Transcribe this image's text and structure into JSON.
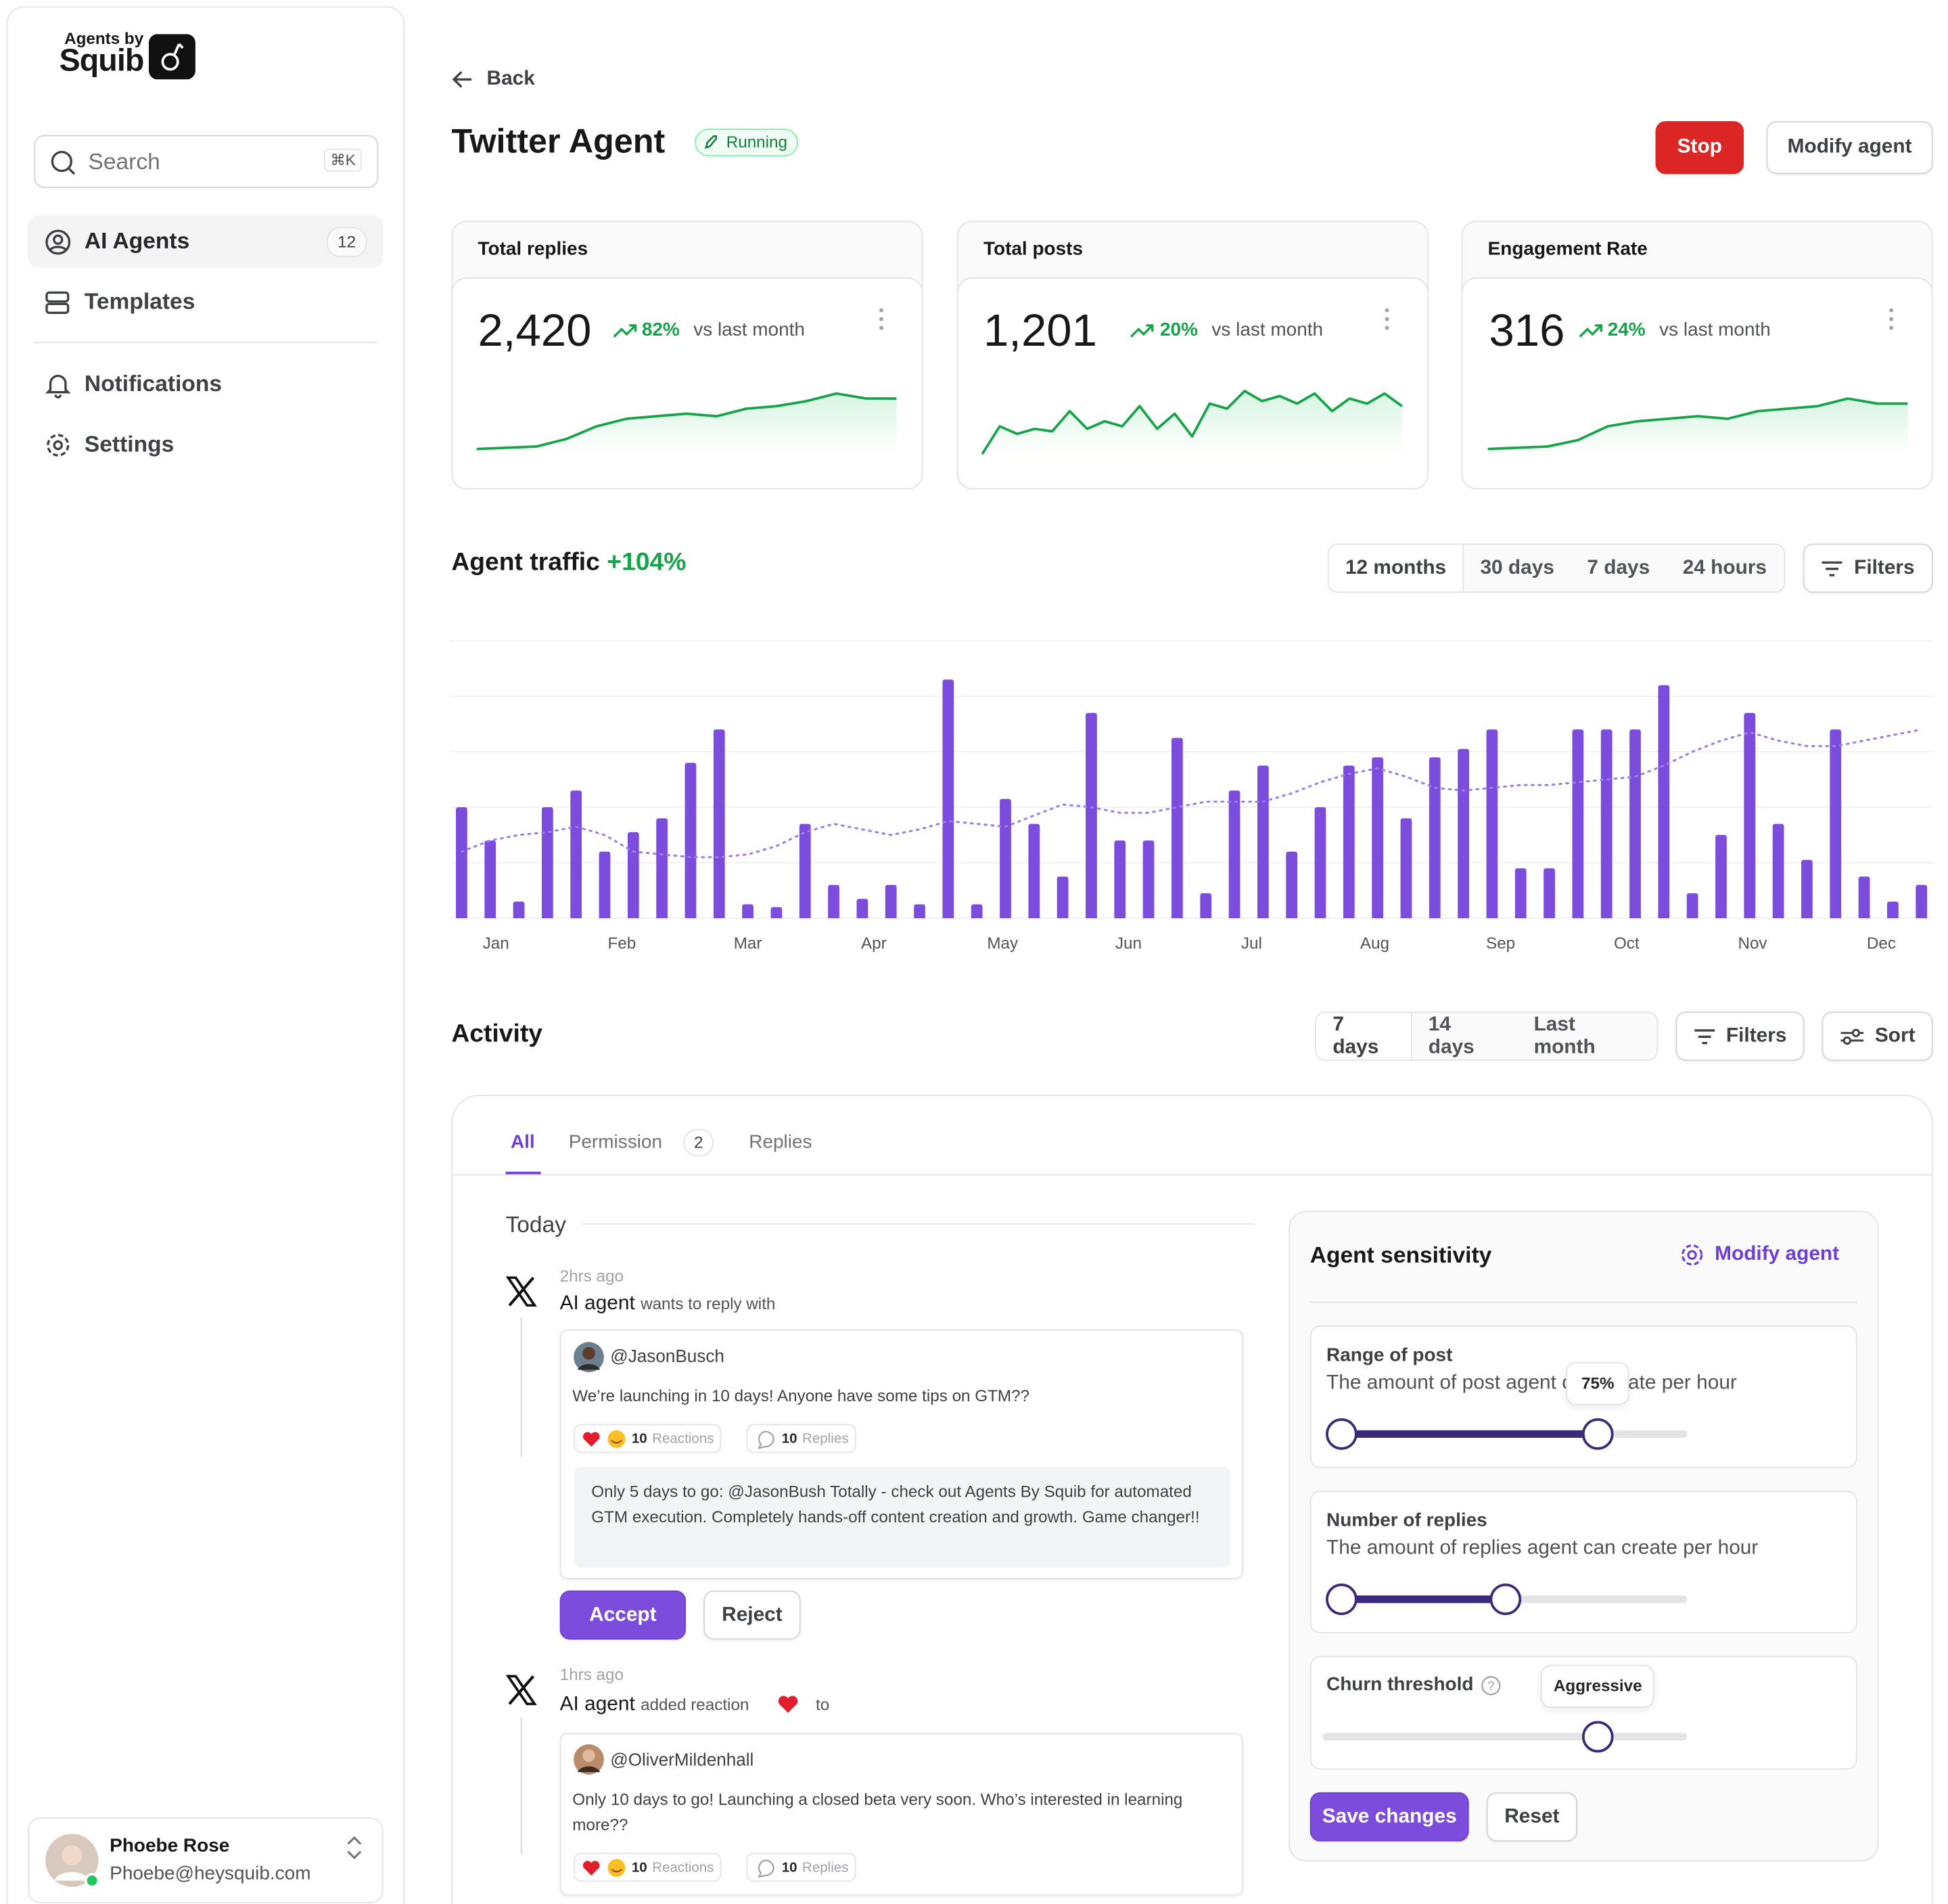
{
  "sidebar": {
    "brand_small": "Agents by",
    "brand": "Squib",
    "search": "Search",
    "shortcut": "⌘K",
    "nav": [
      {
        "label": "AI Agents",
        "count": 12
      },
      {
        "label": "Templates"
      },
      {
        "label": "Notifications"
      },
      {
        "label": "Settings"
      }
    ],
    "user": {
      "name": "Phoebe Rose",
      "email": "Phoebe@heysquib.com"
    }
  },
  "header": {
    "back": "Back",
    "title": "Twitter Agent",
    "status": "Running",
    "stop": "Stop",
    "modify": "Modify agent"
  },
  "sparkline_ylim": [
    0,
    60
  ],
  "cards": [
    {
      "title": "Total replies",
      "value": "2,420",
      "change": "82%",
      "compare": "vs last month",
      "sparkline": [
        4,
        5,
        6,
        12,
        22,
        28,
        30,
        32,
        30,
        36,
        38,
        42,
        48,
        44,
        44
      ]
    },
    {
      "title": "Total posts",
      "value": "1,201",
      "change": "20%",
      "compare": "vs last month",
      "sparkline": [
        0,
        22,
        16,
        20,
        18,
        34,
        20,
        26,
        22,
        38,
        20,
        32,
        14,
        40,
        36,
        50,
        42,
        46,
        40,
        48,
        34,
        44,
        40,
        48,
        38
      ]
    },
    {
      "title": "Engagement Rate",
      "value": "316",
      "change": "24%",
      "compare": "vs last month",
      "sparkline": [
        4,
        5,
        6,
        11,
        22,
        26,
        28,
        30,
        28,
        34,
        36,
        38,
        44,
        40,
        40
      ]
    }
  ],
  "chart_data": {
    "type": "bar",
    "title": "Agent traffic",
    "change": "+104%",
    "x": [
      0,
      1,
      2,
      3,
      4,
      5,
      6,
      7,
      8,
      9,
      10,
      11,
      12,
      13,
      14,
      15,
      16,
      17,
      18,
      19,
      20,
      21,
      22,
      23,
      24,
      25,
      26,
      27,
      28,
      29,
      30,
      31,
      32,
      33,
      34,
      35,
      36,
      37,
      38,
      39,
      40,
      41,
      42,
      43,
      44,
      45,
      46,
      47,
      48,
      49,
      50,
      51
    ],
    "series": [
      {
        "type": "bar",
        "color": "#7c4ddd",
        "values": [
          40,
          28,
          6,
          40,
          46,
          24,
          31,
          36,
          56,
          68,
          5,
          4,
          34,
          12,
          7,
          12,
          5,
          86,
          5,
          43,
          34,
          15,
          74,
          28,
          28,
          65,
          9,
          46,
          55,
          24,
          40,
          55,
          58,
          36,
          58,
          61,
          68,
          18,
          18,
          68,
          68,
          68,
          84,
          9,
          30,
          74,
          34,
          21,
          68,
          15,
          6,
          12
        ]
      },
      {
        "type": "line",
        "color": "#9d7de6",
        "values": [
          24,
          28,
          30,
          31,
          33,
          30,
          24,
          23,
          22,
          22,
          23,
          26,
          31,
          34,
          32,
          30,
          32,
          35,
          34,
          33,
          37,
          41,
          40,
          38,
          38,
          40,
          42,
          42,
          42,
          45,
          49,
          52,
          54,
          51,
          47,
          46,
          47,
          48,
          48,
          49,
          50,
          51,
          55,
          60,
          64,
          67,
          64,
          62,
          62,
          64,
          66,
          68
        ]
      }
    ],
    "xlim": [
      -0.4,
      51.4
    ],
    "xticks": [
      {
        "value": 1.2,
        "label": "Jan"
      },
      {
        "value": 5.6,
        "label": "Feb"
      },
      {
        "value": 10.0,
        "label": "Mar"
      },
      {
        "value": 14.4,
        "label": "Apr"
      },
      {
        "value": 18.9,
        "label": "May"
      },
      {
        "value": 23.3,
        "label": "Jun"
      },
      {
        "value": 27.6,
        "label": "Jul"
      },
      {
        "value": 31.9,
        "label": "Aug"
      },
      {
        "value": 36.3,
        "label": "Sep"
      },
      {
        "value": 40.7,
        "label": "Oct"
      },
      {
        "value": 45.1,
        "label": "Nov"
      },
      {
        "value": 49.6,
        "label": "Dec"
      }
    ],
    "ylim": [
      0,
      100
    ],
    "yticks": [
      0,
      20,
      40,
      60,
      80,
      100
    ],
    "grid": true,
    "range_options": [
      "12 months",
      "30 days",
      "7 days",
      "24 hours"
    ],
    "filters": "Filters"
  },
  "activity": {
    "title": "Activity",
    "ranges": [
      "7 days",
      "14 days",
      "Last month"
    ],
    "filters": "Filters",
    "sort": "Sort",
    "tabs": [
      {
        "label": "All"
      },
      {
        "label": "Permission",
        "count": 2
      },
      {
        "label": "Replies"
      }
    ],
    "group": "Today",
    "items": [
      {
        "time": "2hrs ago",
        "actor": "AI agent",
        "action": "wants to reply with",
        "handle": "@JasonBusch",
        "text": "We’re launching in 10 days! Anyone have some tips on GTM??",
        "reactions": 10,
        "reactions_label": "Reactions",
        "replies": 10,
        "replies_label": "Replies",
        "reply": "Only 5 days to go: @JasonBush Totally - check out Agents By Squib for automated GTM execution. Completely hands-off content creation and growth. Game changer!!",
        "accept": "Accept",
        "reject": "Reject"
      },
      {
        "time": "1hrs ago",
        "actor": "AI agent",
        "action": "added reaction",
        "to": "to",
        "handle": "@OliverMildenhall",
        "text": "Only 10 days to go! Launching a closed beta very soon. Who’s interested in learning more??",
        "reactions": 10,
        "reactions_label": "Reactions",
        "replies": 10,
        "replies_label": "Replies"
      }
    ]
  },
  "sensitivity": {
    "title": "Agent sensitivity",
    "modify": "Modify agent",
    "range": [
      0,
      100
    ],
    "sliders": [
      {
        "title": "Range of post",
        "desc": "The amount of post agent can create per hour",
        "low": 0,
        "high": 75,
        "label": "75%"
      },
      {
        "title": "Number of replies",
        "desc": "The amount of replies agent can create per hour",
        "low": 0,
        "high": 48
      },
      {
        "title": "Churn threshold",
        "value": 75,
        "label": "Aggressive"
      }
    ],
    "save": "Save changes",
    "reset": "Reset"
  }
}
